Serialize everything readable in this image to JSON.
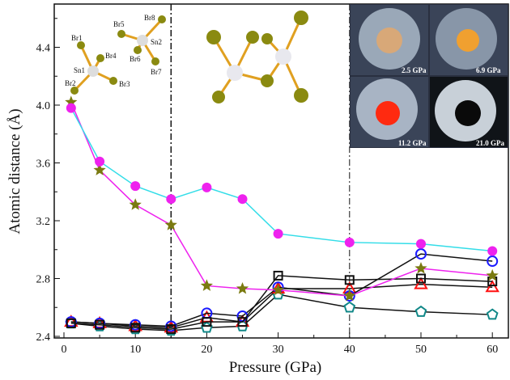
{
  "chart_data": {
    "type": "line",
    "xlabel": "Pressure (GPa)",
    "ylabel": "Atomic distance (Å)",
    "xlim": [
      -1,
      61
    ],
    "ylim": [
      2.4,
      4.72
    ],
    "xticks": [
      0,
      10,
      20,
      30,
      40,
      50,
      60
    ],
    "yticks": [
      "2.4",
      "2.8",
      "3.2",
      "3.6",
      "4.0",
      "4.4"
    ],
    "x": [
      1,
      5,
      10,
      15,
      20,
      25,
      30,
      40,
      50,
      60
    ],
    "vlines": [
      15,
      40
    ],
    "series": [
      {
        "name": "Sn-Br (cyan, magenta circles)",
        "line": "#33dde8",
        "marker": "circle-filled",
        "mcolor": "#ee22ee",
        "values": [
          3.98,
          3.61,
          3.44,
          3.35,
          3.43,
          3.35,
          3.11,
          3.05,
          3.04,
          2.99
        ]
      },
      {
        "name": "Sn-Br (magenta, olive stars)",
        "line": "#ee22ee",
        "marker": "star",
        "mcolor": "#7a7a10",
        "values": [
          4.02,
          3.55,
          3.31,
          3.17,
          2.75,
          2.73,
          2.72,
          2.68,
          2.87,
          2.82
        ]
      },
      {
        "name": "black squares",
        "line": "#111",
        "marker": "square",
        "mcolor": "#111",
        "values": [
          2.49,
          2.48,
          2.46,
          2.45,
          2.5,
          2.5,
          2.82,
          2.79,
          2.8,
          2.78
        ]
      },
      {
        "name": "blue circles",
        "line": "#111",
        "marker": "circle",
        "mcolor": "#1a1aff",
        "values": [
          2.5,
          2.49,
          2.48,
          2.47,
          2.56,
          2.54,
          2.74,
          2.68,
          2.97,
          2.92
        ]
      },
      {
        "name": "red triangles",
        "line": "#111",
        "marker": "triangle",
        "mcolor": "#ff1010",
        "values": [
          2.5,
          2.49,
          2.47,
          2.46,
          2.53,
          2.5,
          2.73,
          2.73,
          2.76,
          2.74
        ]
      },
      {
        "name": "teal pentagons",
        "line": "#111",
        "marker": "pentagon",
        "mcolor": "#118888",
        "values": [
          2.49,
          2.47,
          2.45,
          2.44,
          2.46,
          2.47,
          2.69,
          2.6,
          2.57,
          2.55
        ]
      }
    ]
  },
  "molecule": {
    "atoms": [
      "Br1",
      "Br2",
      "Br3",
      "Br4",
      "Sn1",
      "Br5",
      "Br6",
      "Br7",
      "Br8",
      "Sn2"
    ]
  },
  "photos": [
    "2.5 GPa",
    "6.9 GPa",
    "11.2 GPa",
    "21.0 GPa"
  ]
}
